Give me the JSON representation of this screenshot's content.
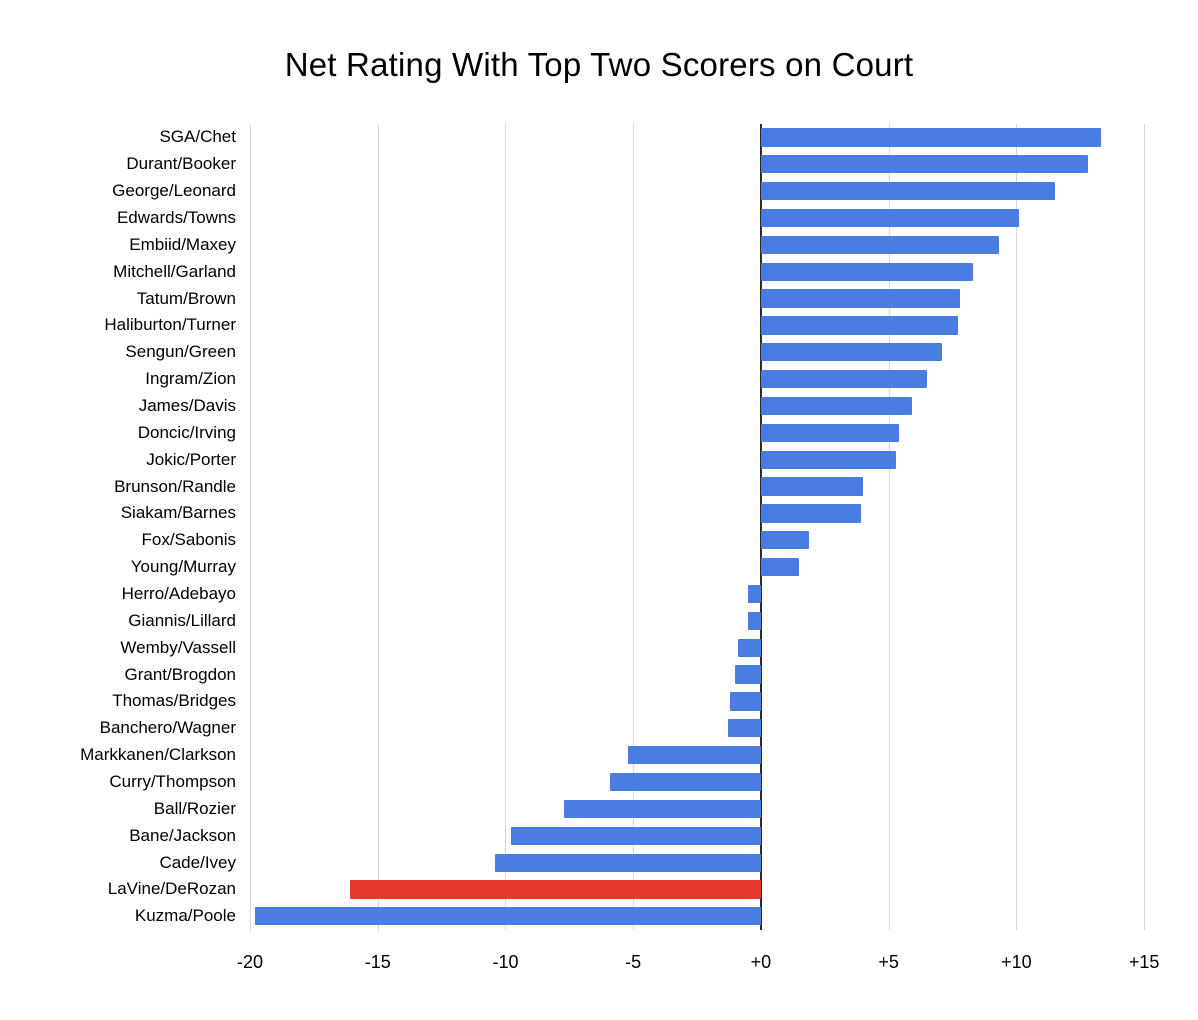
{
  "chart_data": {
    "type": "bar",
    "orientation": "horizontal",
    "title": "Net Rating With Top Two Scorers on Court",
    "xlabel": "",
    "ylabel": "",
    "grid": true,
    "legend": "none",
    "xlim": [
      -20,
      15.7
    ],
    "ticks": [
      -20,
      -15,
      -10,
      -5,
      0,
      5,
      10,
      15
    ],
    "tick_labels": [
      "-20",
      "-15",
      "-10",
      "-5",
      "+0",
      "+5",
      "+10",
      "+15"
    ],
    "colors": {
      "default": "#4a7de2",
      "highlight": "#e5372b",
      "gridline": "#d6d6d6",
      "zero_line": "#2b2b2b"
    },
    "highlight_category": "LaVine/DeRozan",
    "categories": [
      "SGA/Chet",
      "Durant/Booker",
      "George/Leonard",
      "Edwards/Towns",
      "Embiid/Maxey",
      "Mitchell/Garland",
      "Tatum/Brown",
      "Haliburton/Turner",
      "Sengun/Green",
      "Ingram/Zion",
      "James/Davis",
      "Doncic/Irving",
      "Jokic/Porter",
      "Brunson/Randle",
      "Siakam/Barnes",
      "Fox/Sabonis",
      "Young/Murray",
      "Herro/Adebayo",
      "Giannis/Lillard",
      "Wemby/Vassell",
      "Grant/Brogdon",
      "Thomas/Bridges",
      "Banchero/Wagner",
      "Markkanen/Clarkson",
      "Curry/Thompson",
      "Ball/Rozier",
      "Bane/Jackson",
      "Cade/Ivey",
      "LaVine/DeRozan",
      "Kuzma/Poole"
    ],
    "values": [
      13.3,
      12.8,
      11.5,
      10.1,
      9.3,
      8.3,
      7.8,
      7.7,
      7.1,
      6.5,
      5.9,
      5.4,
      5.3,
      4.0,
      3.9,
      1.9,
      1.5,
      -0.5,
      -0.5,
      -0.9,
      -1.0,
      -1.2,
      -1.3,
      -5.2,
      -5.9,
      -7.7,
      -9.8,
      -10.4,
      -16.1,
      -19.8
    ]
  }
}
